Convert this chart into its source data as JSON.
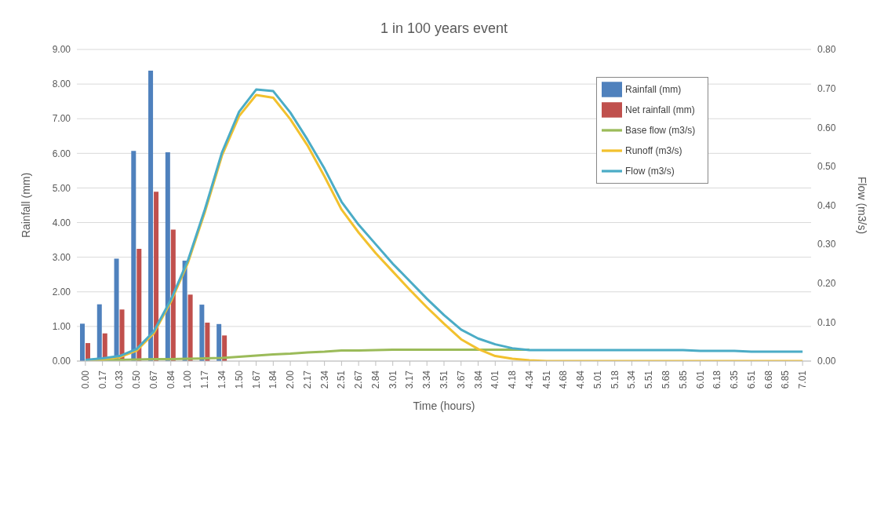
{
  "chart_data": {
    "type": "bar",
    "title": "1 in 100 years event",
    "xlabel": "Time (hours)",
    "ylabel": "Rainfall (mm)",
    "y2label": "Flow (m3/s)",
    "categories": [
      "0.00",
      "0.17",
      "0.33",
      "0.50",
      "0.67",
      "0.84",
      "1.00",
      "1.17",
      "1.34",
      "1.50",
      "1.67",
      "1.84",
      "2.00",
      "2.17",
      "2.34",
      "2.51",
      "2.67",
      "2.84",
      "3.01",
      "3.17",
      "3.34",
      "3.51",
      "3.67",
      "3.84",
      "4.01",
      "4.18",
      "4.34",
      "4.51",
      "4.68",
      "4.84",
      "5.01",
      "5.18",
      "5.34",
      "5.51",
      "5.68",
      "5.85",
      "6.01",
      "6.18",
      "6.35",
      "6.51",
      "6.68",
      "6.85",
      "7.01"
    ],
    "series": [
      {
        "name": "Rainfall (mm)",
        "color": "#4f81bd",
        "values": [
          1.08,
          1.64,
          2.96,
          6.07,
          8.39,
          6.03,
          2.9,
          1.63,
          1.07,
          null,
          null,
          null,
          null,
          null,
          null,
          null,
          null,
          null,
          null,
          null,
          null,
          null,
          null,
          null,
          null,
          null,
          null,
          null,
          null,
          null,
          null,
          null,
          null,
          null,
          null,
          null,
          null,
          null,
          null,
          null,
          null,
          null,
          null
        ]
      },
      {
        "name": "Net rainfall (mm)",
        "color": "#c0504d",
        "values": [
          0.52,
          0.8,
          1.49,
          3.24,
          4.89,
          3.8,
          1.92,
          1.11,
          0.74,
          null,
          null,
          null,
          null,
          null,
          null,
          null,
          null,
          null,
          null,
          null,
          null,
          null,
          null,
          null,
          null,
          null,
          null,
          null,
          null,
          null,
          null,
          null,
          null,
          null,
          null,
          null,
          null,
          null,
          null,
          null,
          null,
          null,
          null
        ]
      },
      {
        "name": "Base flow (m3/s)",
        "type": "line",
        "axis": "y2",
        "color": "#9bbb59",
        "values": [
          0.001,
          0.002,
          0.003,
          0.004,
          0.005,
          0.005,
          0.006,
          0.007,
          0.008,
          0.011,
          0.014,
          0.017,
          0.019,
          0.022,
          0.024,
          0.027,
          0.027,
          0.028,
          0.029,
          0.029,
          0.029,
          0.029,
          0.029,
          0.029,
          0.029,
          0.029,
          0.029,
          null,
          null,
          null,
          null,
          null,
          null,
          null,
          null,
          null,
          null,
          null,
          null,
          null,
          null,
          null,
          null
        ]
      },
      {
        "name": "Runoff (m3/s)",
        "type": "line",
        "axis": "y2",
        "color": "#f2c12e",
        "values": [
          0.002,
          0.005,
          0.01,
          0.027,
          0.071,
          0.152,
          0.252,
          0.383,
          0.528,
          0.629,
          0.683,
          0.676,
          0.621,
          0.554,
          0.474,
          0.389,
          0.33,
          0.277,
          0.23,
          0.183,
          0.138,
          0.096,
          0.056,
          0.031,
          0.013,
          0.006,
          0.002,
          0,
          0,
          0,
          0,
          0,
          0,
          0,
          0,
          0,
          0,
          0,
          0,
          0,
          0,
          0,
          0
        ]
      },
      {
        "name": "Flow (m3/s)",
        "type": "line",
        "axis": "y2",
        "color": "#4bacc6",
        "values": [
          0.003,
          0.007,
          0.013,
          0.031,
          0.076,
          0.157,
          0.258,
          0.39,
          0.536,
          0.64,
          0.697,
          0.693,
          0.638,
          0.569,
          0.494,
          0.409,
          0.35,
          0.3,
          0.25,
          0.205,
          0.16,
          0.118,
          0.081,
          0.058,
          0.043,
          0.033,
          0.028,
          0.028,
          0.028,
          0.028,
          0.028,
          0.028,
          0.028,
          0.028,
          0.028,
          0.028,
          0.026,
          0.026,
          0.026,
          0.024,
          0.024,
          0.024,
          0.024
        ]
      }
    ],
    "ylim": [
      0,
      9
    ],
    "yticks": [
      {
        "value": 0,
        "label": "0.00"
      },
      {
        "value": 1,
        "label": "1.00"
      },
      {
        "value": 2,
        "label": "2.00"
      },
      {
        "value": 3,
        "label": "3.00"
      },
      {
        "value": 4,
        "label": "4.00"
      },
      {
        "value": 5,
        "label": "5.00"
      },
      {
        "value": 6,
        "label": "6.00"
      },
      {
        "value": 7,
        "label": "7.00"
      },
      {
        "value": 8,
        "label": "8.00"
      },
      {
        "value": 9,
        "label": "9.00"
      }
    ],
    "y2lim": [
      0,
      0.8
    ],
    "y2ticks": [
      {
        "value": 0,
        "label": "0.00"
      },
      {
        "value": 0.1,
        "label": "0.10"
      },
      {
        "value": 0.2,
        "label": "0.20"
      },
      {
        "value": 0.3,
        "label": "0.30"
      },
      {
        "value": 0.4,
        "label": "0.40"
      },
      {
        "value": 0.5,
        "label": "0.50"
      },
      {
        "value": 0.6,
        "label": "0.60"
      },
      {
        "value": 0.7,
        "label": "0.70"
      },
      {
        "value": 0.8,
        "label": "0.80"
      }
    ],
    "grid": "y",
    "legend": "top right",
    "marker": "none",
    "line_style": "solid"
  }
}
